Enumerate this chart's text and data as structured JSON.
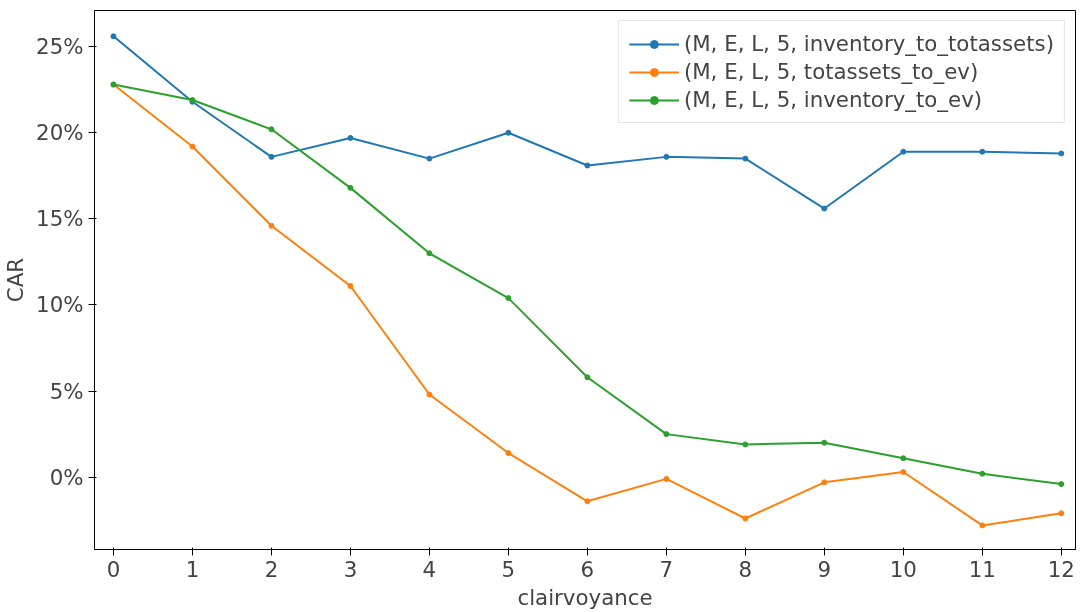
{
  "chart_data": {
    "type": "line",
    "xlabel": "clairvoyance",
    "ylabel": "CAR",
    "x": [
      0,
      1,
      2,
      3,
      4,
      5,
      6,
      7,
      8,
      9,
      10,
      11,
      12
    ],
    "series": [
      {
        "name": "(M, E, L, 5, inventory_to_totassets)",
        "color": "#1f77b4",
        "values": [
          25.6,
          21.8,
          18.6,
          19.7,
          18.5,
          20.0,
          18.1,
          18.6,
          18.5,
          15.6,
          18.9,
          18.9,
          18.8
        ]
      },
      {
        "name": "(M, E, L, 5, totassets_to_ev)",
        "color": "#ff7f0e",
        "values": [
          22.8,
          19.2,
          14.6,
          11.1,
          4.8,
          1.4,
          -1.4,
          -0.1,
          -2.4,
          -0.3,
          0.3,
          -2.8,
          -2.1
        ]
      },
      {
        "name": "(M, E, L, 5, inventory_to_ev)",
        "color": "#2ca02c",
        "values": [
          22.8,
          21.9,
          20.2,
          16.8,
          13.0,
          10.4,
          5.8,
          2.5,
          1.9,
          2.0,
          1.1,
          0.2,
          -0.4
        ]
      }
    ],
    "xlim": [
      -0.24,
      12.18
    ],
    "ylim": [
      -4.2,
      27.1
    ],
    "xticks": [
      0,
      1,
      2,
      3,
      4,
      5,
      6,
      7,
      8,
      9,
      10,
      11,
      12
    ],
    "yticks": [
      {
        "value": 0,
        "label": "0%"
      },
      {
        "value": 5,
        "label": "5%"
      },
      {
        "value": 10,
        "label": "10%"
      },
      {
        "value": 15,
        "label": "15%"
      },
      {
        "value": 20,
        "label": "20%"
      },
      {
        "value": 25,
        "label": "25%"
      }
    ],
    "marker": "circle",
    "line_style": "solid",
    "legend": "top right",
    "grid": false
  }
}
